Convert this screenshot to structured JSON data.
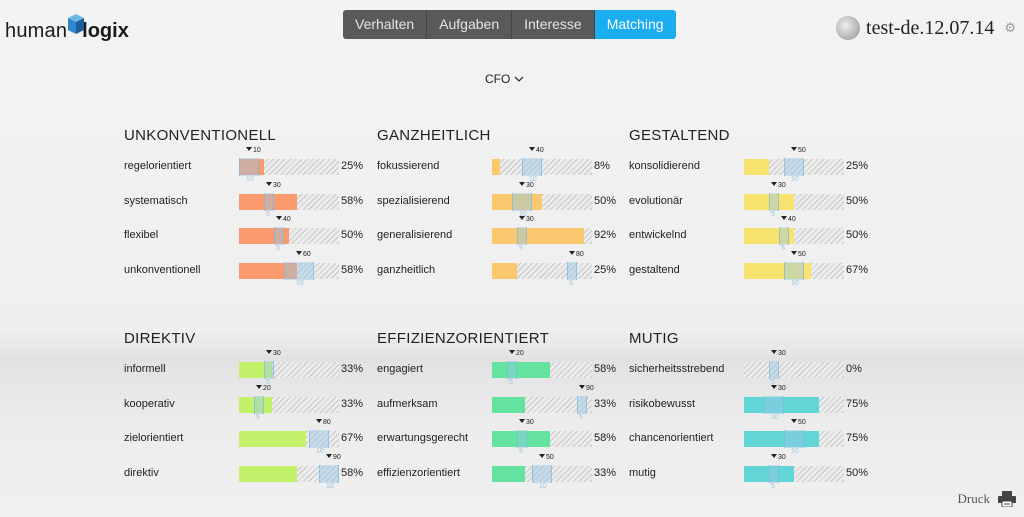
{
  "brand": {
    "part1": "human",
    "part2": "logix"
  },
  "tabs": [
    {
      "label": "Verhalten",
      "active": false
    },
    {
      "label": "Aufgaben",
      "active": false
    },
    {
      "label": "Interesse",
      "active": false
    },
    {
      "label": "Matching",
      "active": true
    }
  ],
  "user": {
    "name": "test-de.12.07.14"
  },
  "role_selector": {
    "label": "CFO"
  },
  "footer": {
    "print_label": "Druck"
  },
  "colors": {
    "orange": "#fb9a6c",
    "yellow_orange": "#fac86e",
    "yellow": "#f7e36d",
    "lime": "#c3f26a",
    "green": "#63e39f",
    "teal": "#62d6d6",
    "tab_active": "#1aaef0"
  },
  "sections": [
    {
      "title": "UNKONVENTIONELL",
      "color": "#fb9a6c",
      "rows": [
        {
          "label": "regelorientiert",
          "value": 25,
          "pct": "25%",
          "target": "10",
          "lower": "10",
          "band": [
            0,
            20
          ]
        },
        {
          "label": "systematisch",
          "value": 58,
          "pct": "58%",
          "target": "30",
          "lower": "5",
          "band": [
            25,
            35
          ]
        },
        {
          "label": "flexibel",
          "value": 50,
          "pct": "50%",
          "target": "40",
          "lower": "5",
          "band": [
            35,
            45
          ]
        },
        {
          "label": "unkonventionell",
          "value": 58,
          "pct": "58%",
          "target": "60",
          "lower": "10",
          "band": [
            45,
            75
          ]
        }
      ]
    },
    {
      "title": "GANZHEITLICH",
      "color": "#fac86e",
      "rows": [
        {
          "label": "fokussierend",
          "value": 8,
          "pct": "8%",
          "target": "40",
          "lower": "10",
          "band": [
            30,
            50
          ]
        },
        {
          "label": "spezialisierend",
          "value": 50,
          "pct": "50%",
          "target": "30",
          "lower": "10",
          "band": [
            20,
            40
          ]
        },
        {
          "label": "generalisierend",
          "value": 92,
          "pct": "92%",
          "target": "30",
          "lower": "5",
          "band": [
            25,
            35
          ]
        },
        {
          "label": "ganzheitlich",
          "value": 25,
          "pct": "25%",
          "target": "80",
          "lower": "5",
          "band": [
            75,
            85
          ]
        }
      ]
    },
    {
      "title": "GESTALTEND",
      "color": "#f7e36d",
      "rows": [
        {
          "label": "konsolidierend",
          "value": 25,
          "pct": "25%",
          "target": "50",
          "lower": "10",
          "band": [
            40,
            60
          ]
        },
        {
          "label": "evolutionär",
          "value": 50,
          "pct": "50%",
          "target": "30",
          "lower": "5",
          "band": [
            25,
            35
          ]
        },
        {
          "label": "entwickelnd",
          "value": 50,
          "pct": "50%",
          "target": "40",
          "lower": "5",
          "band": [
            35,
            45
          ]
        },
        {
          "label": "gestaltend",
          "value": 67,
          "pct": "67%",
          "target": "50",
          "lower": "10",
          "band": [
            40,
            60
          ]
        }
      ]
    },
    {
      "title": "DIREKTIV",
      "color": "#c3f26a",
      "rows": [
        {
          "label": "informell",
          "value": 33,
          "pct": "33%",
          "target": "30",
          "lower": "5",
          "band": [
            25,
            35
          ]
        },
        {
          "label": "kooperativ",
          "value": 33,
          "pct": "33%",
          "target": "20",
          "lower": "5",
          "band": [
            15,
            25
          ]
        },
        {
          "label": "zielorientiert",
          "value": 67,
          "pct": "67%",
          "target": "80",
          "lower": "10",
          "band": [
            70,
            90
          ]
        },
        {
          "label": "direktiv",
          "value": 58,
          "pct": "58%",
          "target": "90",
          "lower": "10",
          "band": [
            80,
            100
          ]
        }
      ]
    },
    {
      "title": "EFFIZIENZORIENTIERT",
      "color": "#63e39f",
      "rows": [
        {
          "label": "engagiert",
          "value": 58,
          "pct": "58%",
          "target": "20",
          "lower": "5",
          "band": [
            15,
            25
          ]
        },
        {
          "label": "aufmerksam",
          "value": 33,
          "pct": "33%",
          "target": "90",
          "lower": "5",
          "band": [
            85,
            95
          ]
        },
        {
          "label": "erwartungsgerecht",
          "value": 58,
          "pct": "58%",
          "target": "30",
          "lower": "5",
          "band": [
            25,
            35
          ]
        },
        {
          "label": "effizienzorientiert",
          "value": 33,
          "pct": "33%",
          "target": "50",
          "lower": "10",
          "band": [
            40,
            60
          ]
        }
      ]
    },
    {
      "title": "MUTIG",
      "color": "#62d6d6",
      "rows": [
        {
          "label": "sicherheitsstrebend",
          "value": 0,
          "pct": "0%",
          "target": "30",
          "lower": "5",
          "band": [
            25,
            35
          ]
        },
        {
          "label": "risikobewusst",
          "value": 75,
          "pct": "75%",
          "target": "30",
          "lower": "10",
          "band": [
            20,
            40
          ]
        },
        {
          "label": "chancenorientiert",
          "value": 75,
          "pct": "75%",
          "target": "50",
          "lower": "10",
          "band": [
            40,
            60
          ]
        },
        {
          "label": "mutig",
          "value": 50,
          "pct": "50%",
          "target": "30",
          "lower": "5",
          "band": [
            25,
            35
          ]
        }
      ]
    }
  ]
}
